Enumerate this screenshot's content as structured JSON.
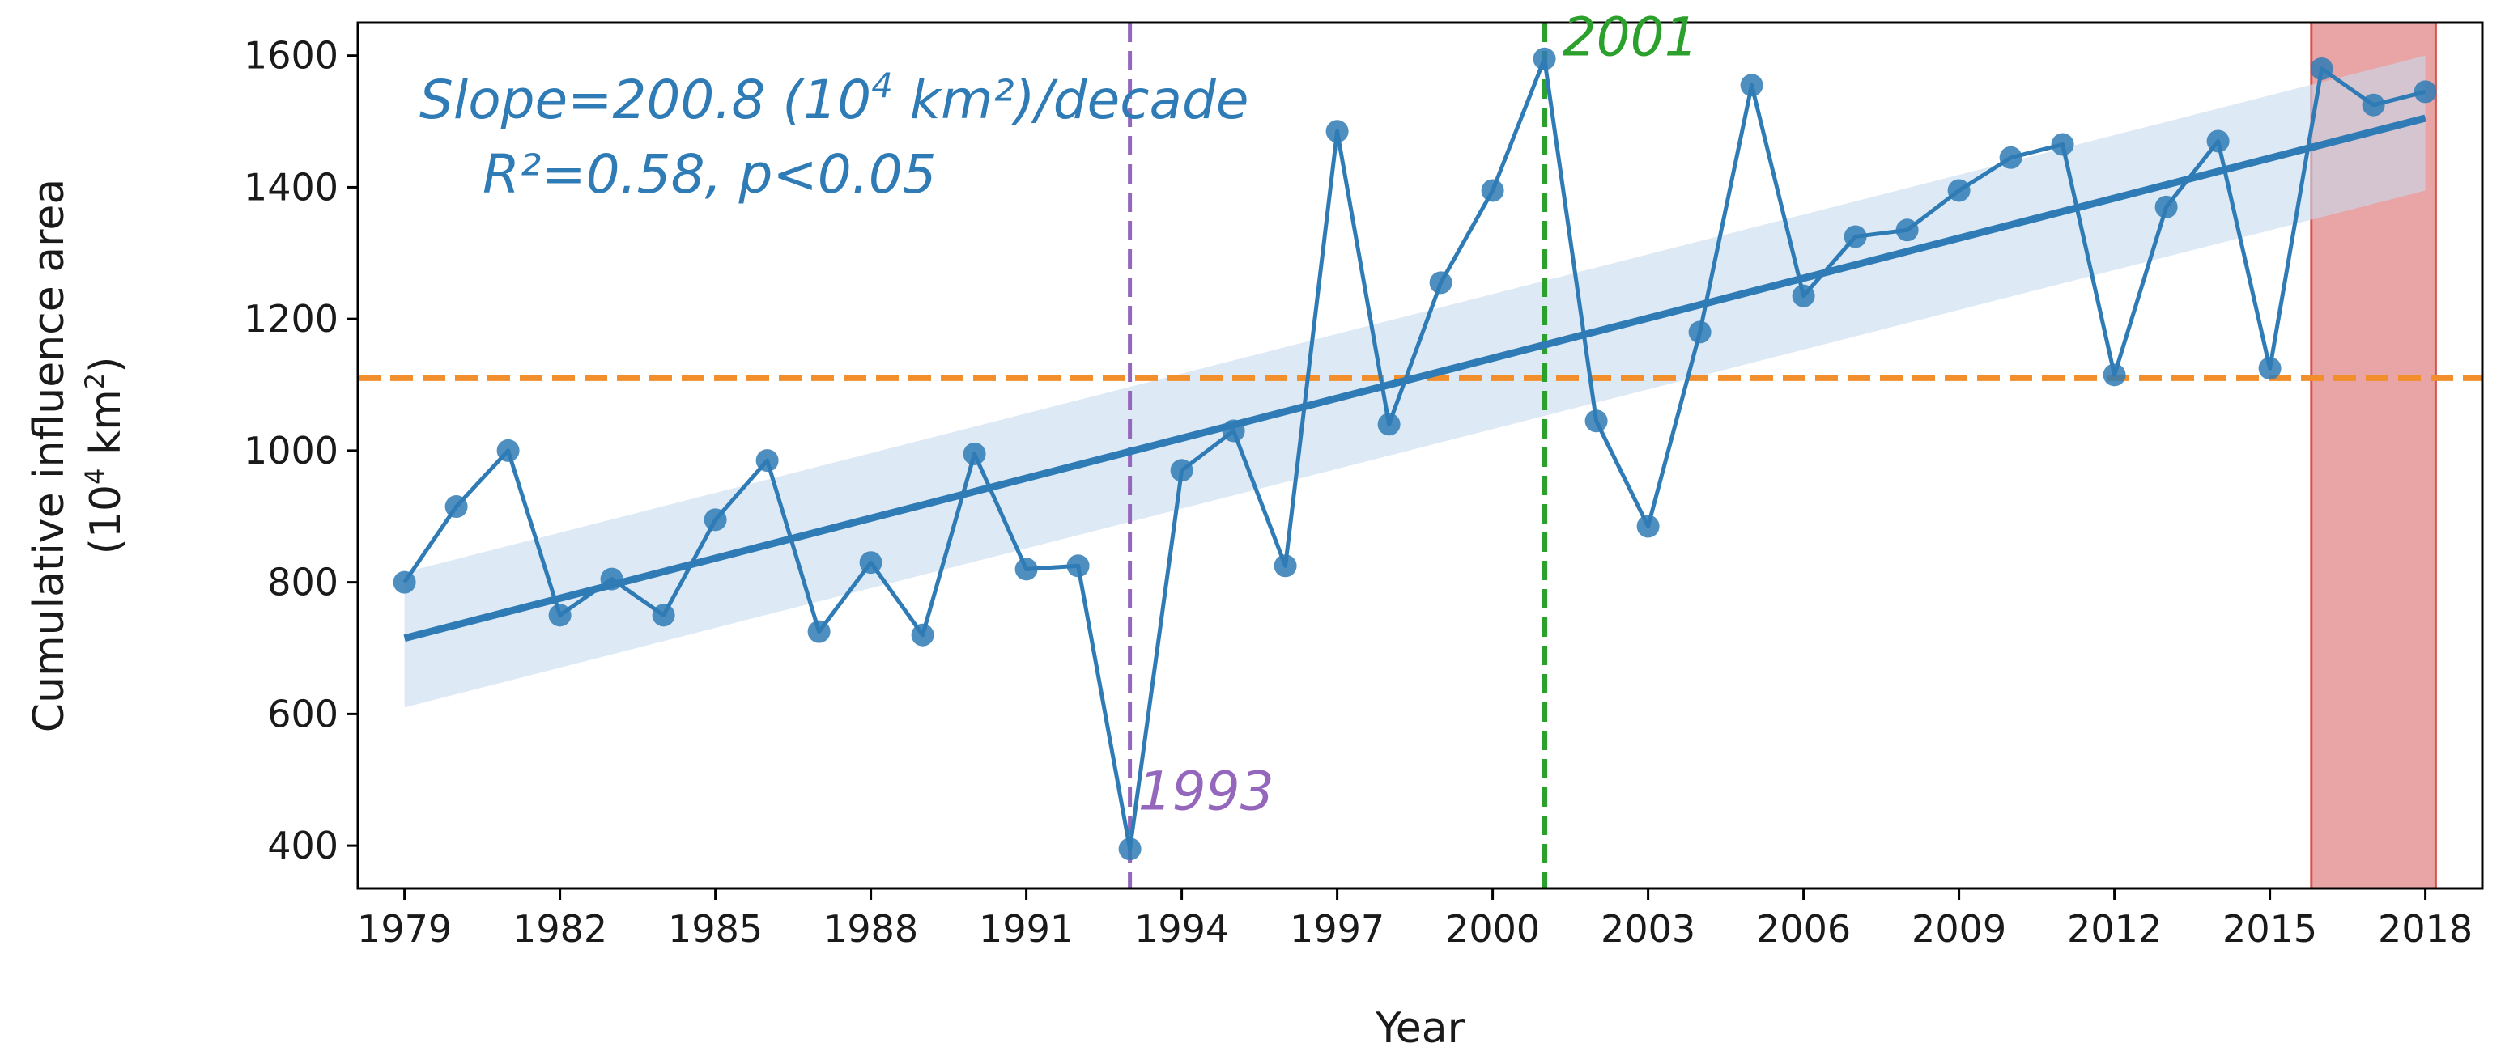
{
  "chart_data": {
    "type": "line",
    "title": "",
    "xlabel": "Year",
    "ylabel_line1": "Cumulative influence area",
    "ylabel_line2_prefix": "(10",
    "ylabel_line2_sup": "4",
    "ylabel_line2_mid": " km",
    "ylabel_line2_sup2": "2",
    "ylabel_line2_suffix": ")",
    "xlim": [
      1978.1,
      2019.1
    ],
    "ylim": [
      335,
      1650
    ],
    "xticks": [
      1979,
      1982,
      1985,
      1988,
      1991,
      1994,
      1997,
      2000,
      2003,
      2006,
      2009,
      2012,
      2015,
      2018
    ],
    "yticks": [
      400,
      600,
      800,
      1000,
      1200,
      1400,
      1600
    ],
    "grid": false,
    "series": [
      {
        "name": "Cumulative influence area",
        "color": "#2f7bb5",
        "x": [
          1979,
          1980,
          1981,
          1982,
          1983,
          1984,
          1985,
          1986,
          1987,
          1988,
          1989,
          1990,
          1991,
          1992,
          1993,
          1994,
          1995,
          1996,
          1997,
          1998,
          1999,
          2000,
          2001,
          2002,
          2003,
          2004,
          2005,
          2006,
          2007,
          2008,
          2009,
          2010,
          2011,
          2012,
          2013,
          2014,
          2015,
          2016,
          2017,
          2018
        ],
        "y": [
          800,
          915,
          1000,
          750,
          805,
          750,
          895,
          985,
          725,
          830,
          720,
          995,
          820,
          825,
          395,
          970,
          1030,
          825,
          1485,
          1040,
          1255,
          1395,
          1595,
          1045,
          885,
          1180,
          1555,
          1235,
          1325,
          1335,
          1395,
          1445,
          1465,
          1115,
          1370,
          1470,
          1125,
          1580,
          1525,
          1545
        ]
      }
    ],
    "trend": {
      "x": [
        1979,
        2018
      ],
      "y": [
        715,
        1505
      ],
      "color": "#2f7bb5"
    },
    "confidence_band": {
      "x": [
        1979,
        2018
      ],
      "lower": [
        610,
        1395
      ],
      "upper": [
        815,
        1600
      ],
      "color": "#c6dbef"
    },
    "mean_line": {
      "y": 1110,
      "color": "#f28e2b"
    },
    "vlines": [
      {
        "x": 1993,
        "label": "1993",
        "color": "#9467bd"
      },
      {
        "x": 2001,
        "label": "2001",
        "color": "#2ca02c"
      }
    ],
    "shaded_span": {
      "x0": 2015.8,
      "x1": 2018.2,
      "color": "#e8a0a0",
      "edge": "#d9534f"
    },
    "annotation": {
      "line1_prefix": "Slope=200.8 (10",
      "line1_sup": "4",
      "line1_suffix": " km²)/decade",
      "line2": "R²=0.58, p<0.05",
      "color": "#2f7bb5"
    }
  }
}
